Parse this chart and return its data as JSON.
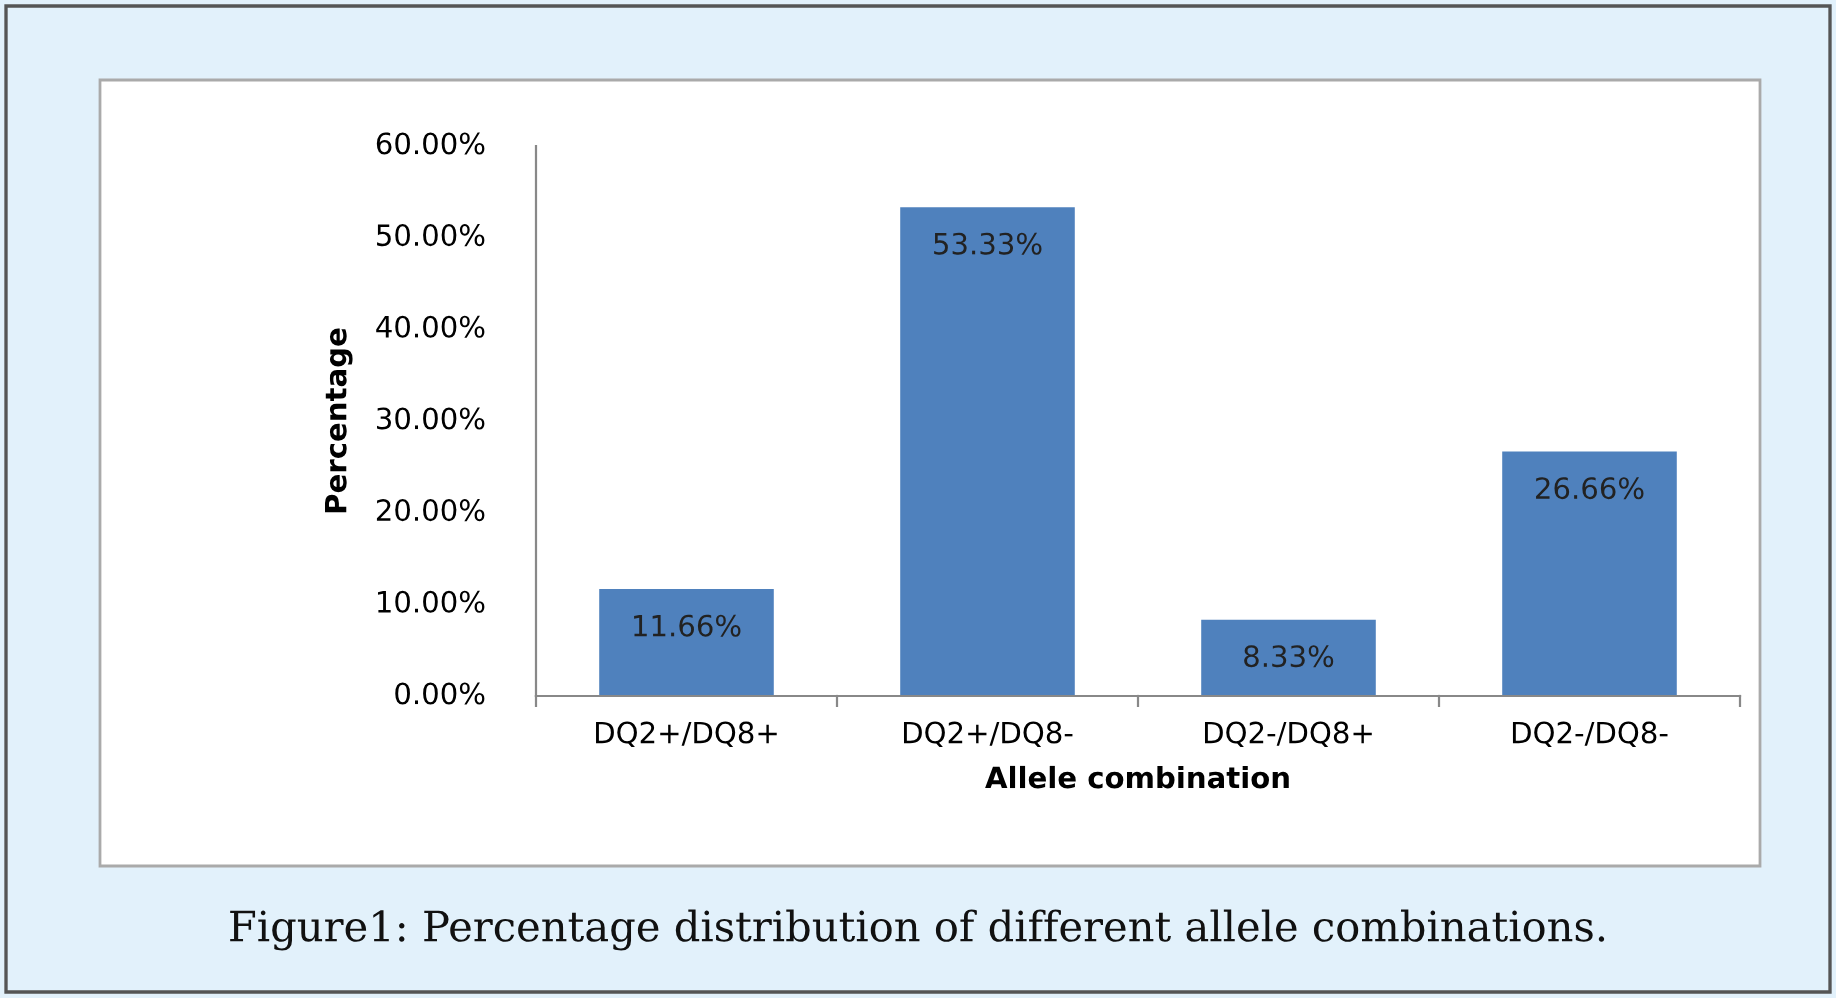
{
  "chart_data": {
    "type": "bar",
    "xlabel": "Allele combination",
    "ylabel": "Percentage",
    "categories": [
      "DQ2+/DQ8+",
      "DQ2+/DQ8-",
      "DQ2-/DQ8+",
      "DQ2-/DQ8-"
    ],
    "values": [
      11.66,
      53.33,
      8.33,
      26.66
    ],
    "value_labels": [
      "11.66%",
      "53.33%",
      "8.33%",
      "26.66%"
    ],
    "color": "#4f81bd",
    "ylim": [
      0,
      60
    ],
    "yticks": [
      {
        "value": 0,
        "label": "0.00%"
      },
      {
        "value": 10,
        "label": "10.00%"
      },
      {
        "value": 20,
        "label": "20.00%"
      },
      {
        "value": 30,
        "label": "30.00%"
      },
      {
        "value": 40,
        "label": "40.00%"
      },
      {
        "value": 50,
        "label": "50.00%"
      },
      {
        "value": 60,
        "label": "60.00%"
      }
    ],
    "grid": false,
    "annotations": [
      "Figure1: Percentage distribution of different allele combinations."
    ]
  }
}
